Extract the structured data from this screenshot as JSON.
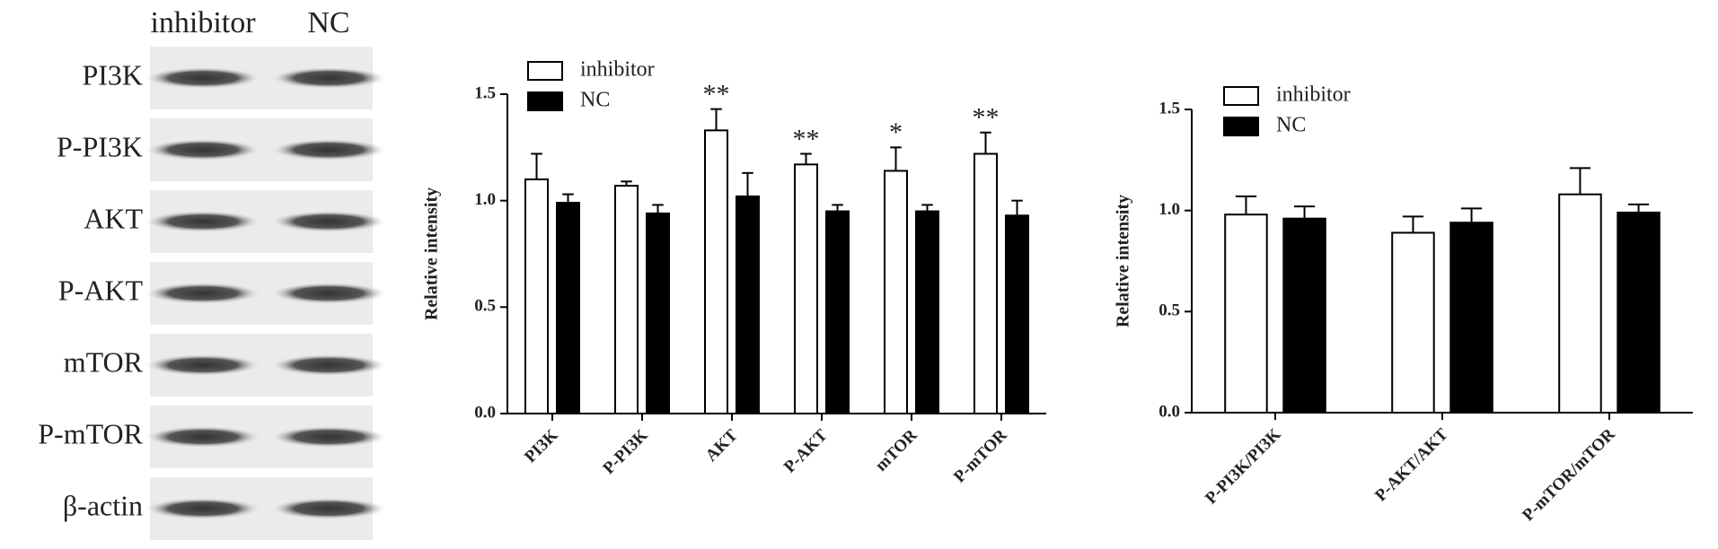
{
  "blot": {
    "lanes": [
      "inhibitor",
      "NC"
    ],
    "proteins": [
      "PI3K",
      "P-PI3K",
      "AKT",
      "P-AKT",
      "mTOR",
      "P-mTOR",
      "β-actin"
    ]
  },
  "chart_data": [
    {
      "type": "bar",
      "ylabel": "Relative intensity",
      "categories": [
        "PI3K",
        "P-PI3K",
        "AKT",
        "P-AKT",
        "mTOR",
        "P-mTOR"
      ],
      "series": [
        {
          "name": "inhibitor",
          "color": "#ffffff",
          "values": [
            1.1,
            1.07,
            1.33,
            1.17,
            1.14,
            1.22
          ],
          "errors": [
            0.12,
            0.02,
            0.1,
            0.05,
            0.11,
            0.1
          ]
        },
        {
          "name": "NC",
          "color": "#000000",
          "values": [
            0.99,
            0.94,
            1.02,
            0.95,
            0.95,
            0.93
          ],
          "errors": [
            0.04,
            0.04,
            0.11,
            0.03,
            0.03,
            0.07
          ]
        }
      ],
      "significance": [
        null,
        null,
        "**",
        "**",
        "*",
        "**"
      ],
      "ylim": [
        0,
        1.5
      ],
      "yticks": [
        {
          "value": 0,
          "label": "0.0"
        },
        {
          "value": 0.5,
          "label": "0.5"
        },
        {
          "value": 1,
          "label": "1.0"
        },
        {
          "value": 1.5,
          "label": "1.5"
        }
      ],
      "legend": "upper left"
    },
    {
      "type": "bar",
      "ylabel": "Relative intensity",
      "categories": [
        "P-PI3K/PI3K",
        "P-AKT/AKT",
        "P-mTOR/mTOR"
      ],
      "series": [
        {
          "name": "inhibitor",
          "color": "#ffffff",
          "values": [
            0.98,
            0.89,
            1.08
          ],
          "errors": [
            0.09,
            0.08,
            0.13
          ]
        },
        {
          "name": "NC",
          "color": "#000000",
          "values": [
            0.96,
            0.94,
            0.99
          ],
          "errors": [
            0.06,
            0.07,
            0.04
          ]
        }
      ],
      "ylim": [
        0,
        1.5
      ],
      "yticks": [
        {
          "value": 0,
          "label": "0.0"
        },
        {
          "value": 0.5,
          "label": "0.5"
        },
        {
          "value": 1,
          "label": "1.0"
        },
        {
          "value": 1.5,
          "label": "1.5"
        }
      ],
      "legend": "upper left"
    }
  ]
}
